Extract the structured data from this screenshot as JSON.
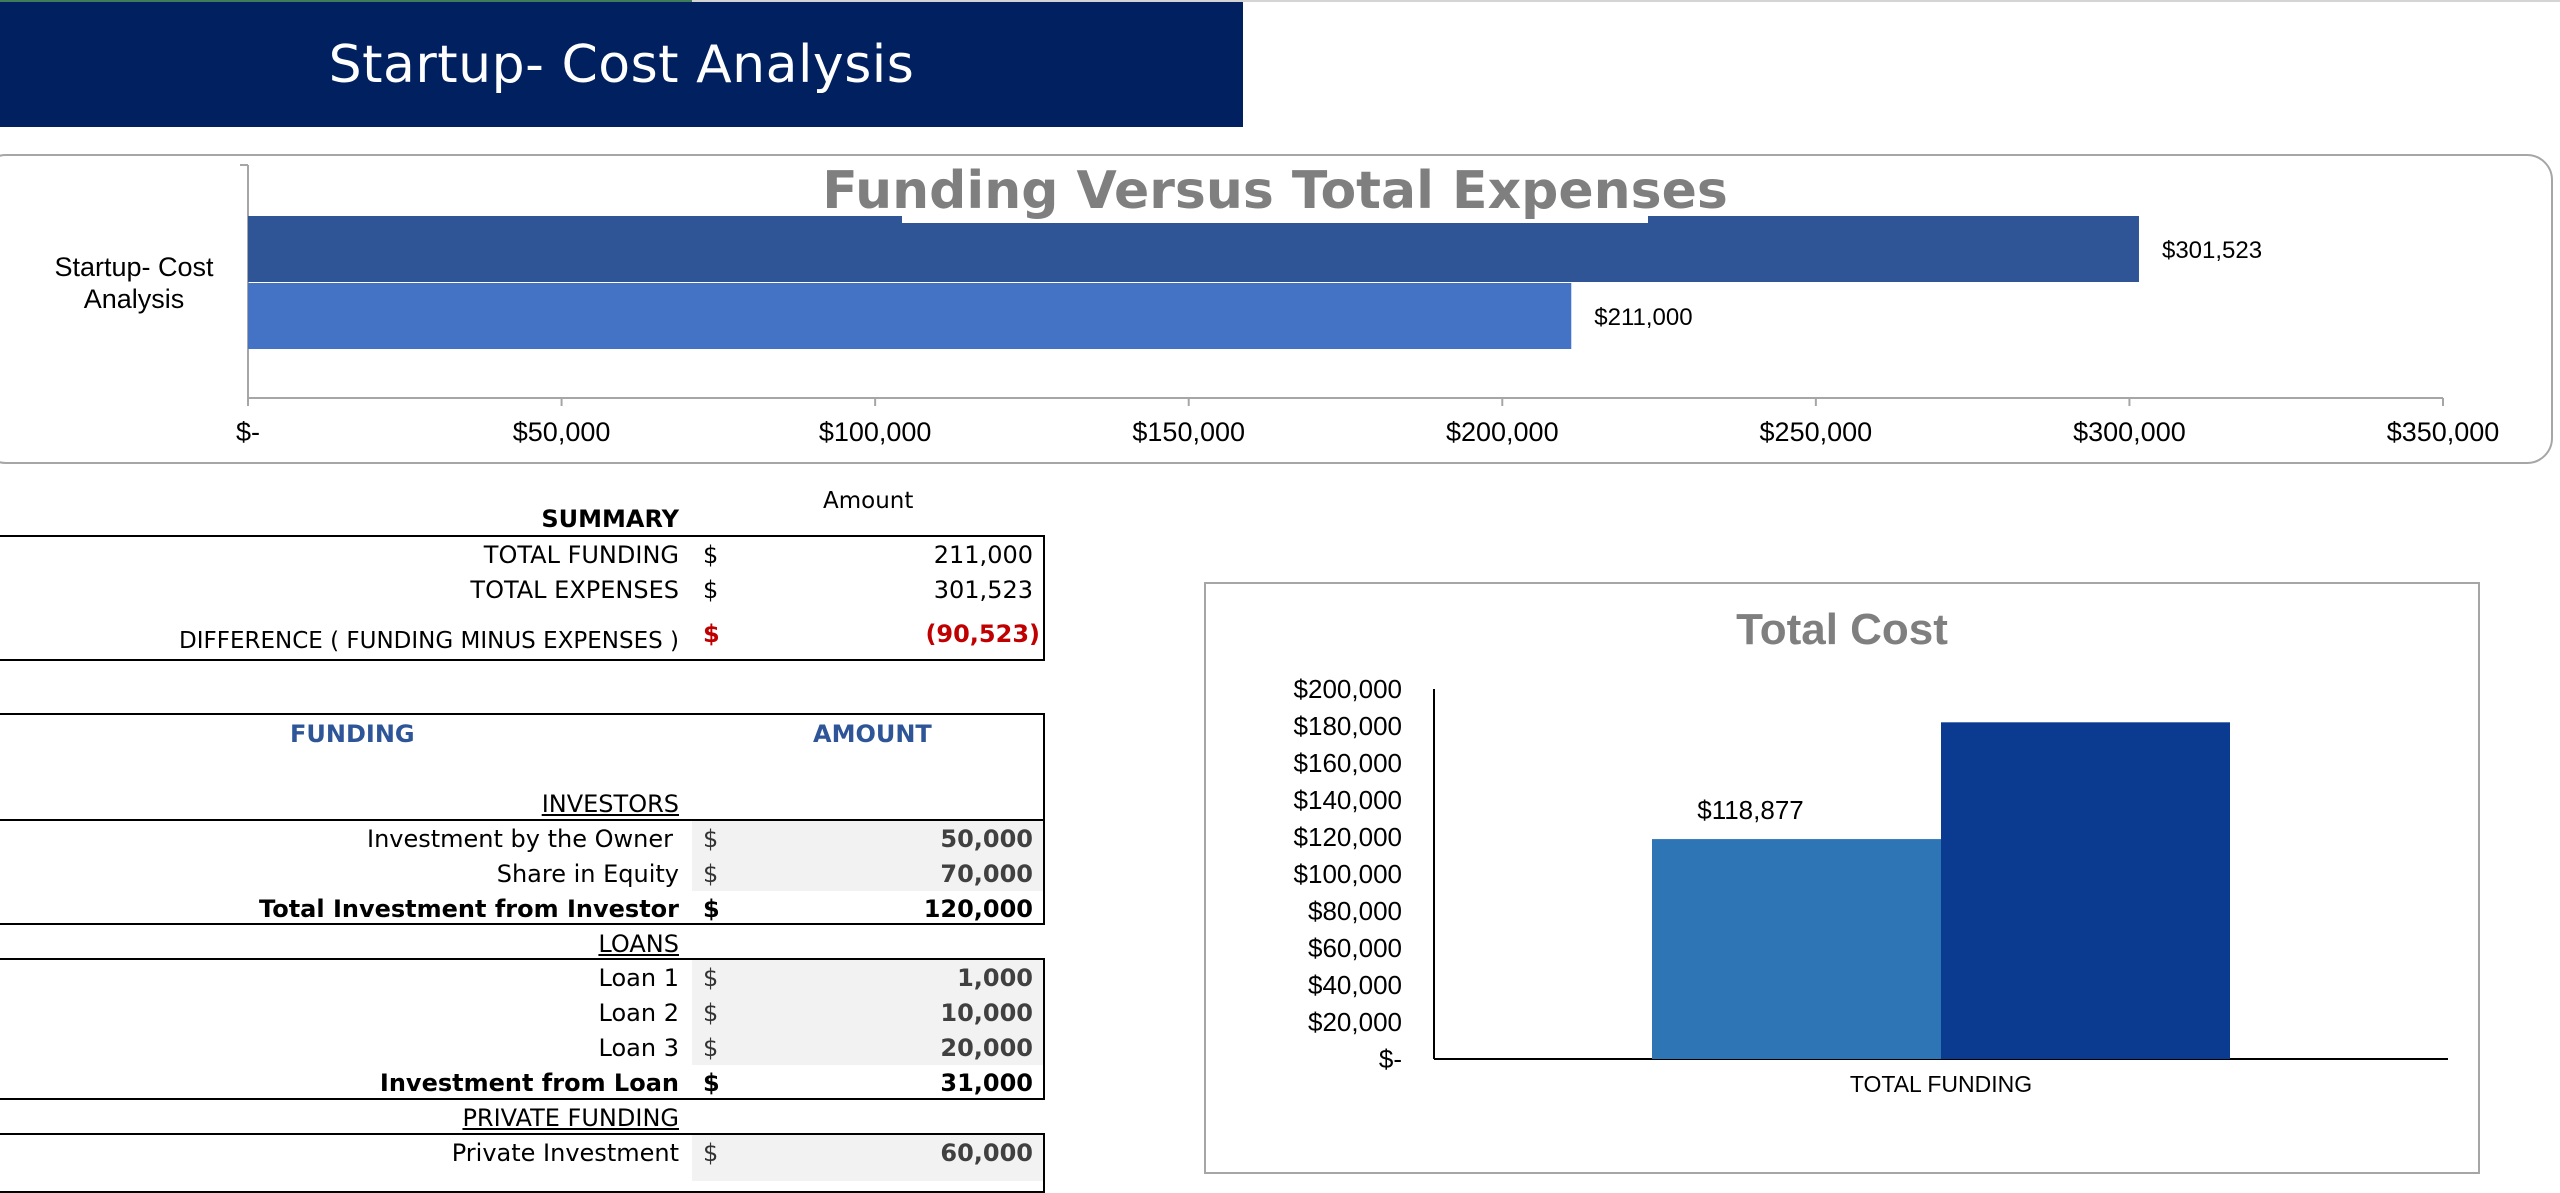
{
  "banner": {
    "title": "Startup- Cost Analysis"
  },
  "colors": {
    "banner": "#002060",
    "bar_expenses": "#2f5597",
    "bar_funding": "#4472c4",
    "col_a": "#2e75b6",
    "col_b": "#0b3b91",
    "accent_text": "#2e5597",
    "negative": "#c00000"
  },
  "chart_data": [
    {
      "type": "bar",
      "orientation": "horizontal",
      "title": "Funding Versus Total Expenses",
      "categories": [
        "Startup- Cost Analysis"
      ],
      "series": [
        {
          "values": [
            301523
          ],
          "label": "$301,523"
        },
        {
          "values": [
            211000
          ],
          "label": "$211,000"
        }
      ],
      "xlim": [
        0,
        350000
      ],
      "ticks": [
        0,
        50000,
        100000,
        150000,
        200000,
        250000,
        300000,
        350000
      ],
      "tick_labels": [
        "$-",
        "$50,000",
        "$100,000",
        "$150,000",
        "$200,000",
        "$250,000",
        "$300,000",
        "$350,000"
      ],
      "grid": false
    },
    {
      "type": "bar",
      "title": "Total Cost",
      "categories": [
        "TOTAL FUNDING"
      ],
      "series": [
        {
          "values": [
            118877
          ],
          "label": "$118,877"
        },
        {
          "values": [
            182000
          ],
          "label": ""
        }
      ],
      "ylim": [
        0,
        200000
      ],
      "ticks": [
        0,
        20000,
        40000,
        60000,
        80000,
        100000,
        120000,
        140000,
        160000,
        180000,
        200000
      ],
      "tick_labels": [
        "$-",
        "$20,000",
        "$40,000",
        "$60,000",
        "$80,000",
        "$100,000",
        "$120,000",
        "$140,000",
        "$160,000",
        "$180,000",
        "$200,000"
      ],
      "grid": false
    }
  ],
  "summary": {
    "amount_header": "Amount",
    "title": "SUMMARY",
    "rows": [
      {
        "label": "TOTAL FUNDING",
        "currency": "$",
        "value": "211,000"
      },
      {
        "label": "TOTAL EXPENSES",
        "currency": "$",
        "value": "301,523"
      },
      {
        "label": "DIFFERENCE  ( FUNDING MINUS EXPENSES )",
        "currency": "$",
        "value": "(90,523)"
      }
    ]
  },
  "funding": {
    "header_label": "FUNDING",
    "header_amount": "AMOUNT",
    "investors": {
      "title": "INVESTORS",
      "rows": [
        {
          "label": "Investment by the Owner",
          "currency": "$",
          "value": "50,000"
        },
        {
          "label": "Share in Equity",
          "currency": "$",
          "value": "70,000"
        }
      ],
      "total": {
        "label": "Total Investment from Investor",
        "currency": "$",
        "value": "120,000"
      }
    },
    "loans": {
      "title": "LOANS",
      "rows": [
        {
          "label": "Loan 1",
          "currency": "$",
          "value": "1,000"
        },
        {
          "label": "Loan 2",
          "currency": "$",
          "value": "10,000"
        },
        {
          "label": "Loan 3",
          "currency": "$",
          "value": "20,000"
        }
      ],
      "total": {
        "label": "Investment from Loan",
        "currency": "$",
        "value": "31,000"
      }
    },
    "private": {
      "title": "PRIVATE FUNDING",
      "rows": [
        {
          "label": "Private Investment",
          "currency": "$",
          "value": "60,000"
        }
      ]
    }
  }
}
